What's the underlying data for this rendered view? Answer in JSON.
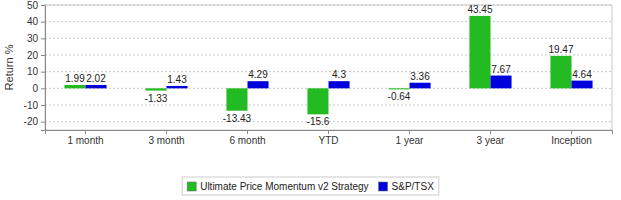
{
  "chart_data": {
    "type": "bar",
    "y_label": "Return %",
    "categories": [
      "1 month",
      "3 month",
      "6 month",
      "YTD",
      "1 year",
      "3 year",
      "Inception"
    ],
    "series": [
      {
        "name": "Ultimate Price Momentum v2 Strategy",
        "color": "#22bb22",
        "values": [
          1.99,
          -1.33,
          -13.43,
          -15.6,
          -0.64,
          43.45,
          19.47
        ]
      },
      {
        "name": "S&P/TSX",
        "color": "#0000dd",
        "values": [
          2.02,
          1.43,
          4.29,
          4.3,
          3.36,
          7.67,
          4.64
        ]
      }
    ],
    "ylim": [
      -25,
      50
    ],
    "yticks": [
      -20,
      -10,
      0,
      10,
      20,
      30,
      40,
      50
    ],
    "grid": true,
    "data_labels": true,
    "legend": "bottom"
  }
}
